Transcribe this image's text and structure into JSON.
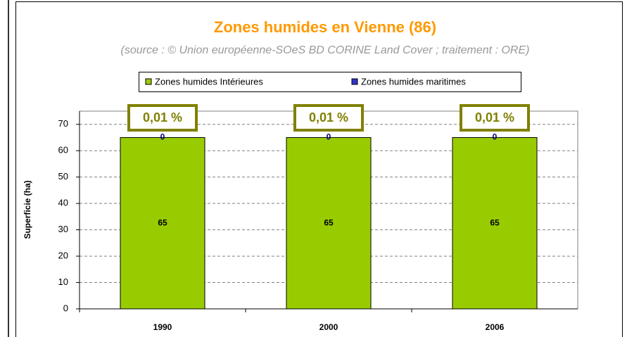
{
  "chart_data": {
    "type": "stacked-bar",
    "title": "Zones humides en Vienne (86)",
    "subtitle": "(source : © Union européenne-SOeS BD CORINE Land Cover ; traitement : ORE)",
    "ylabel": "Superficie (ha)",
    "categories": [
      "1990",
      "2000",
      "2006"
    ],
    "series": [
      {
        "name": "Zones humides Intérieures",
        "color": "#99cc00",
        "values": [
          65,
          65,
          65
        ]
      },
      {
        "name": "Zones humides maritimes",
        "color": "#3333cc",
        "values": [
          0,
          0,
          0
        ]
      }
    ],
    "annotations": [
      "0,01 %",
      "0,01 %",
      "0,01 %"
    ],
    "ylim": [
      0,
      75
    ],
    "yticks": [
      0,
      10,
      20,
      30,
      40,
      50,
      60,
      70
    ],
    "grid": true,
    "legend": "top"
  }
}
